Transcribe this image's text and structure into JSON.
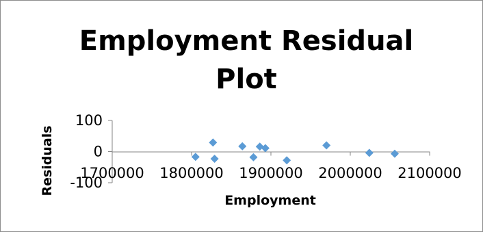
{
  "chart_data": {
    "type": "scatter",
    "title_lines": [
      "Employment  Residual",
      "Plot"
    ],
    "xlabel": "Employment",
    "ylabel": "Residuals",
    "xlim": [
      1700000,
      2100000
    ],
    "ylim": [
      -100,
      100
    ],
    "x_ticks": [
      1700000,
      1800000,
      1900000,
      2000000,
      2100000
    ],
    "x_tick_labels": [
      "1700000",
      "1800000",
      "1900000",
      "2000000",
      "2100000"
    ],
    "y_ticks": [
      100,
      0,
      -100
    ],
    "y_tick_labels": [
      "100",
      "0",
      "-100"
    ],
    "grid": false,
    "legend": "none",
    "marker_color": "#5B9BD5",
    "points": [
      {
        "x": 1805000,
        "y": -17
      },
      {
        "x": 1827000,
        "y": 29
      },
      {
        "x": 1829000,
        "y": -23
      },
      {
        "x": 1864000,
        "y": 17
      },
      {
        "x": 1878000,
        "y": -18
      },
      {
        "x": 1886000,
        "y": 16
      },
      {
        "x": 1893000,
        "y": 11
      },
      {
        "x": 1920000,
        "y": -28
      },
      {
        "x": 1970000,
        "y": 20
      },
      {
        "x": 2024000,
        "y": -4
      },
      {
        "x": 2056000,
        "y": -7
      }
    ]
  }
}
